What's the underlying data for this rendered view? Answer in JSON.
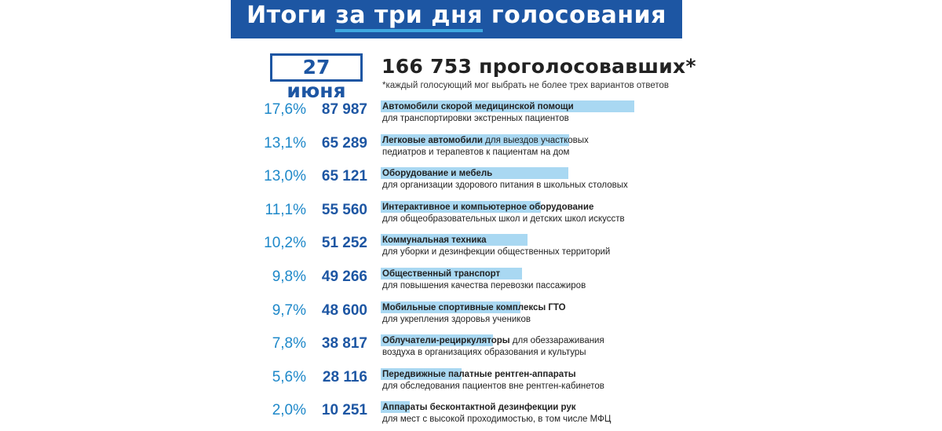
{
  "header": {
    "title_pre": "Итоги ",
    "title_highlight": "за три дня",
    "title_post": " голосования"
  },
  "date": "27 июня",
  "total": "166 753 проголосовавших*",
  "footnote": "*каждый голосующий мог выбрать не более трех вариантов ответов",
  "colors": {
    "banner": "#1d56a3",
    "accent": "#3fa9e0",
    "percent": "#1e88c9",
    "count": "#1d56a3",
    "bar": "#a9d8f2"
  },
  "chart_data": {
    "type": "bar",
    "orientation": "horizontal",
    "title": "Итоги за три дня голосования",
    "unit": "%",
    "items": [
      {
        "percent": 17.6,
        "percent_label": "17,6%",
        "count": "87 987",
        "bold": "Автомобили скорой медицинской помощи",
        "rest": "",
        "line2": "для транспортировки экстренных пациентов"
      },
      {
        "percent": 13.1,
        "percent_label": "13,1%",
        "count": "65 289",
        "bold": "Легковые автомобили",
        "rest": " для выездов участковых",
        "line2": "педиатров и терапевтов к пациентам на дом"
      },
      {
        "percent": 13.0,
        "percent_label": "13,0%",
        "count": "65 121",
        "bold": "Оборудование и мебель",
        "rest": "",
        "line2": "для организации здорового питания в школьных столовых"
      },
      {
        "percent": 11.1,
        "percent_label": "11,1%",
        "count": "55 560",
        "bold": "Интерактивное и компьютерное оборудование",
        "rest": "",
        "line2": "для общеобразовательных школ и детских школ искусств"
      },
      {
        "percent": 10.2,
        "percent_label": "10,2%",
        "count": "51 252",
        "bold": "Коммунальная техника",
        "rest": "",
        "line2": "для уборки и дезинфекции общественных территорий"
      },
      {
        "percent": 9.8,
        "percent_label": "9,8%",
        "count": "49 266",
        "bold": "Общественный транспорт",
        "rest": "",
        "line2": "для повышения качества перевозки пассажиров"
      },
      {
        "percent": 9.7,
        "percent_label": "9,7%",
        "count": "48 600",
        "bold": "Мобильные спортивные комплексы ГТО",
        "rest": "",
        "line2": "для укрепления здоровья учеников"
      },
      {
        "percent": 7.8,
        "percent_label": "7,8%",
        "count": "38 817",
        "bold": "Облучатели-рециркуляторы",
        "rest": " для обеззараживания",
        "line2": "воздуха в организациях образования и культуры"
      },
      {
        "percent": 5.6,
        "percent_label": "5,6%",
        "count": "28 116",
        "bold": "Передвижные палатные рентген-аппараты",
        "rest": "",
        "line2": "для обследования пациентов вне рентген-кабинетов"
      },
      {
        "percent": 2.0,
        "percent_label": "2,0%",
        "count": "10 251",
        "bold": "Аппараты бесконтактной дезинфекции рук",
        "rest": "",
        "line2": "для мест с высокой проходимостью, в том числе МФЦ"
      }
    ]
  }
}
